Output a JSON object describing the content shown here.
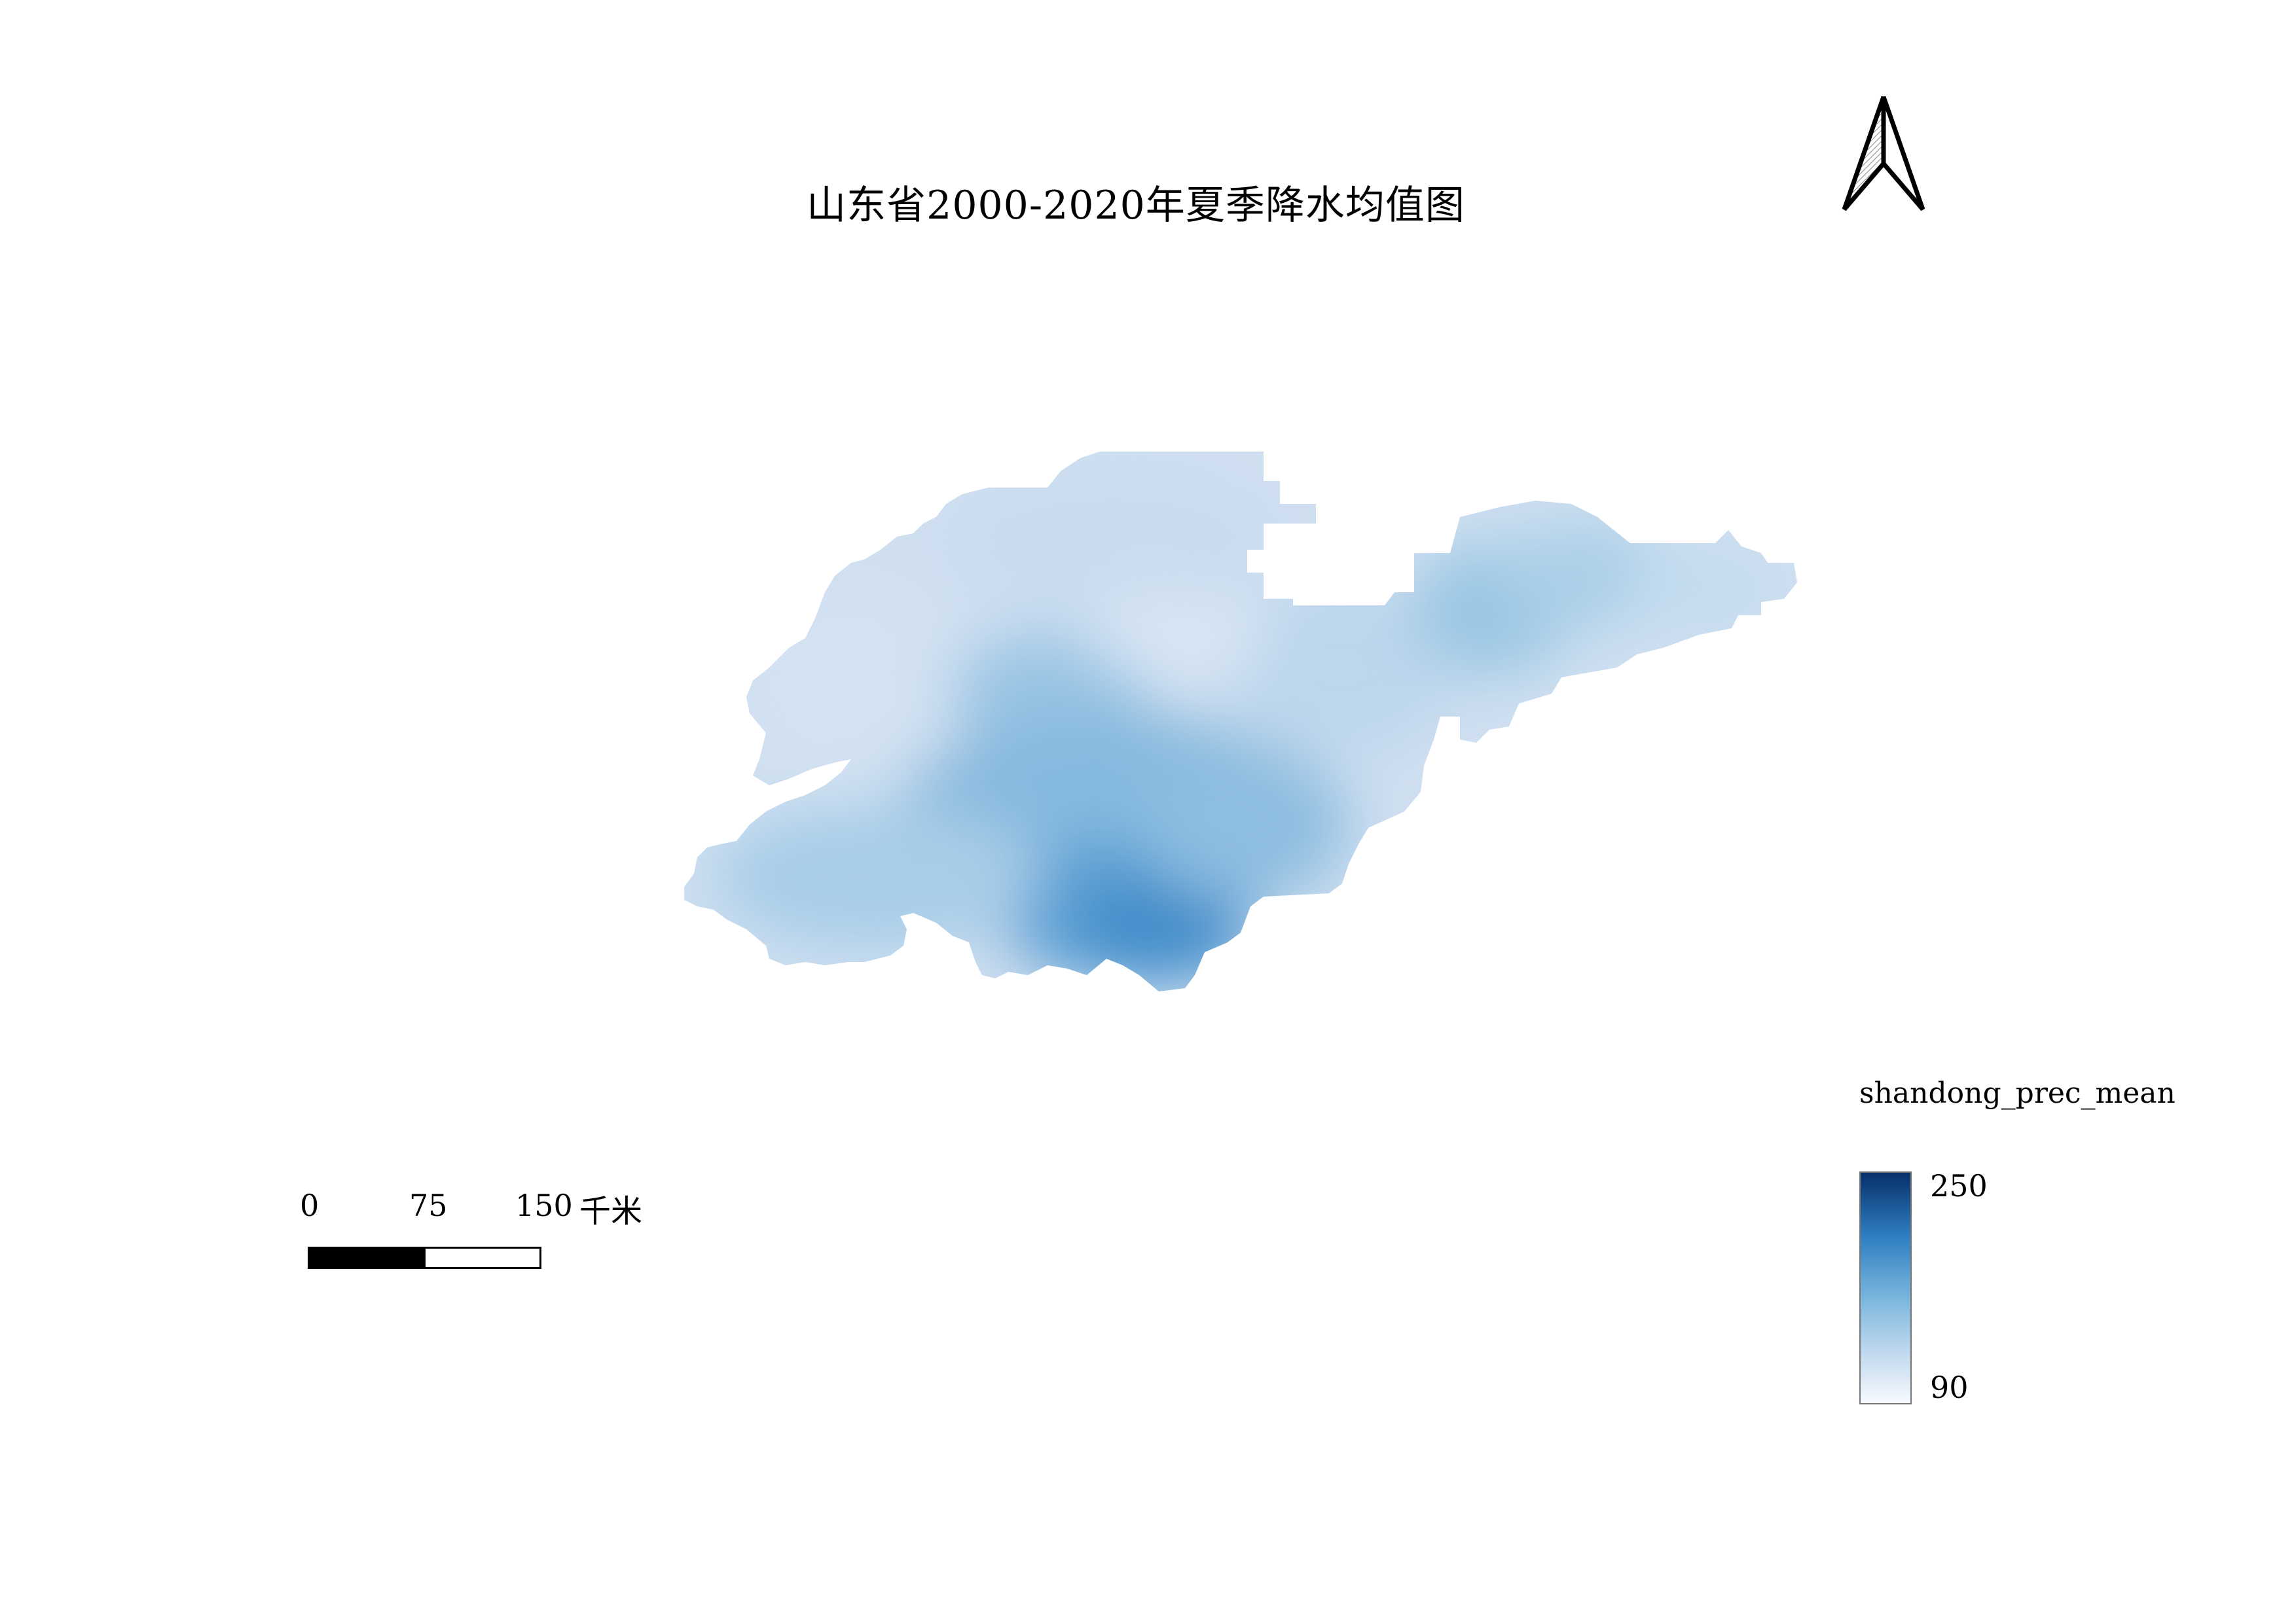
{
  "title": "山东省2000-2020年夏季降水均值图",
  "scale_bar": {
    "ticks": [
      "0",
      "75",
      "150"
    ],
    "unit": "千米"
  },
  "legend": {
    "title": "shandong_prec_mean",
    "max_label": "250",
    "min_label": "90",
    "ramp_colors": [
      "#08306b",
      "#2f7fc1",
      "#7cb7dd",
      "#c6dbef",
      "#f7fbff"
    ]
  },
  "north_arrow": {
    "icon": "north-arrow-icon"
  },
  "map": {
    "region": "Shandong province precipitation raster",
    "fill_colors": [
      "#cfdff0",
      "#b9d4ea",
      "#9cc6e4",
      "#7fb5dc",
      "#4f95cd"
    ]
  }
}
